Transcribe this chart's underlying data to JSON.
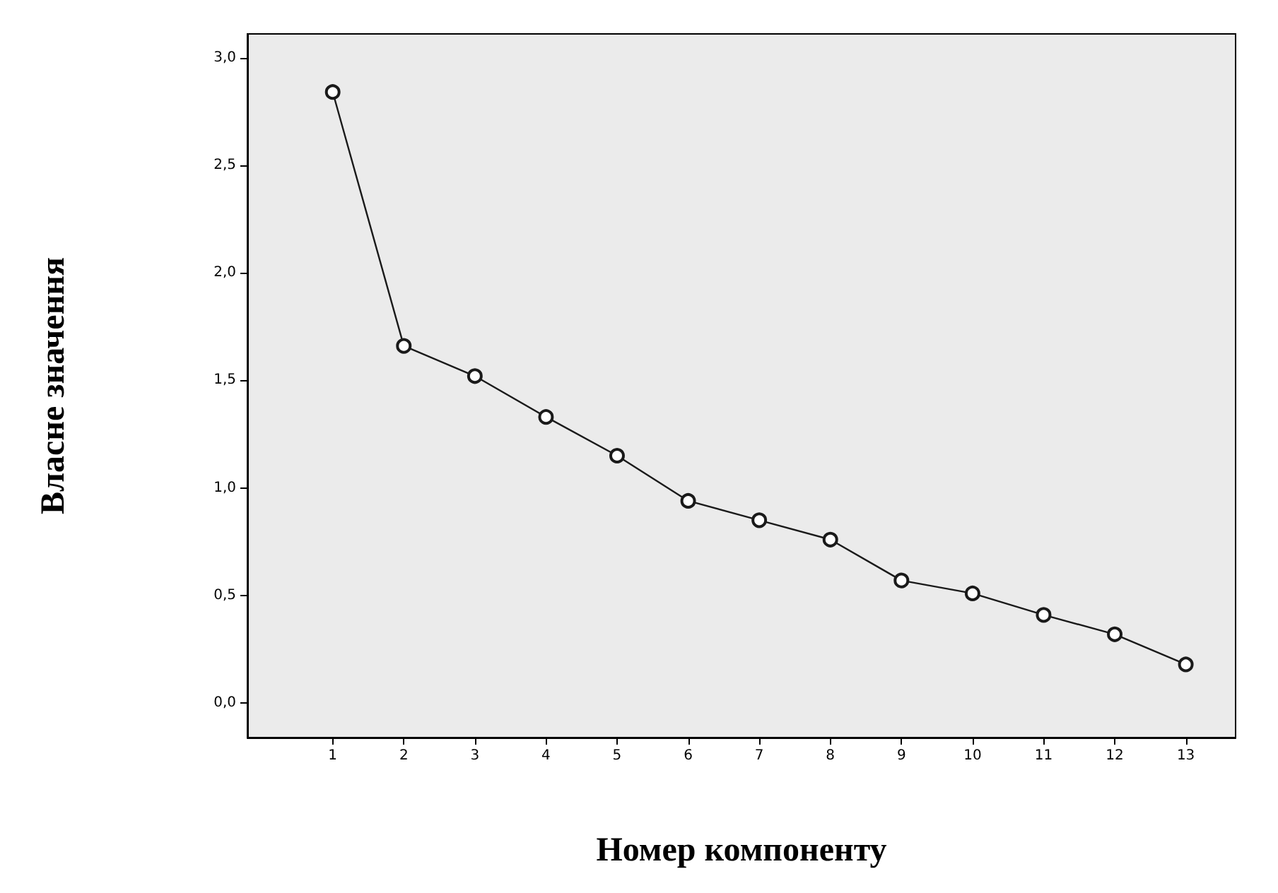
{
  "chart_data": {
    "type": "line",
    "xlabel": "Номер компоненту",
    "ylabel": "Власне значення",
    "x": [
      1,
      2,
      3,
      4,
      5,
      6,
      7,
      8,
      9,
      10,
      11,
      12,
      13
    ],
    "series": [
      {
        "color": "#1a1a1a",
        "values": [
          2.84,
          1.66,
          1.52,
          1.33,
          1.15,
          0.94,
          0.85,
          0.76,
          0.57,
          0.51,
          0.41,
          0.32,
          0.18
        ]
      }
    ],
    "xlim": [
      -0.2,
      13.7
    ],
    "xticks": [
      1,
      2,
      3,
      4,
      5,
      6,
      7,
      8,
      9,
      10,
      11,
      12,
      13
    ],
    "ylim": [
      -0.16,
      3.11
    ],
    "yticks": [
      {
        "value": 0,
        "label": "0,0"
      },
      {
        "value": 0.5,
        "label": "0,5"
      },
      {
        "value": 1,
        "label": "1,0"
      },
      {
        "value": 1.5,
        "label": "1,5"
      },
      {
        "value": 2,
        "label": "2,0"
      },
      {
        "value": 2.5,
        "label": "2,5"
      },
      {
        "value": 3,
        "label": "3,0"
      }
    ],
    "grid": false,
    "marker": "circle",
    "line_style": "solid"
  }
}
